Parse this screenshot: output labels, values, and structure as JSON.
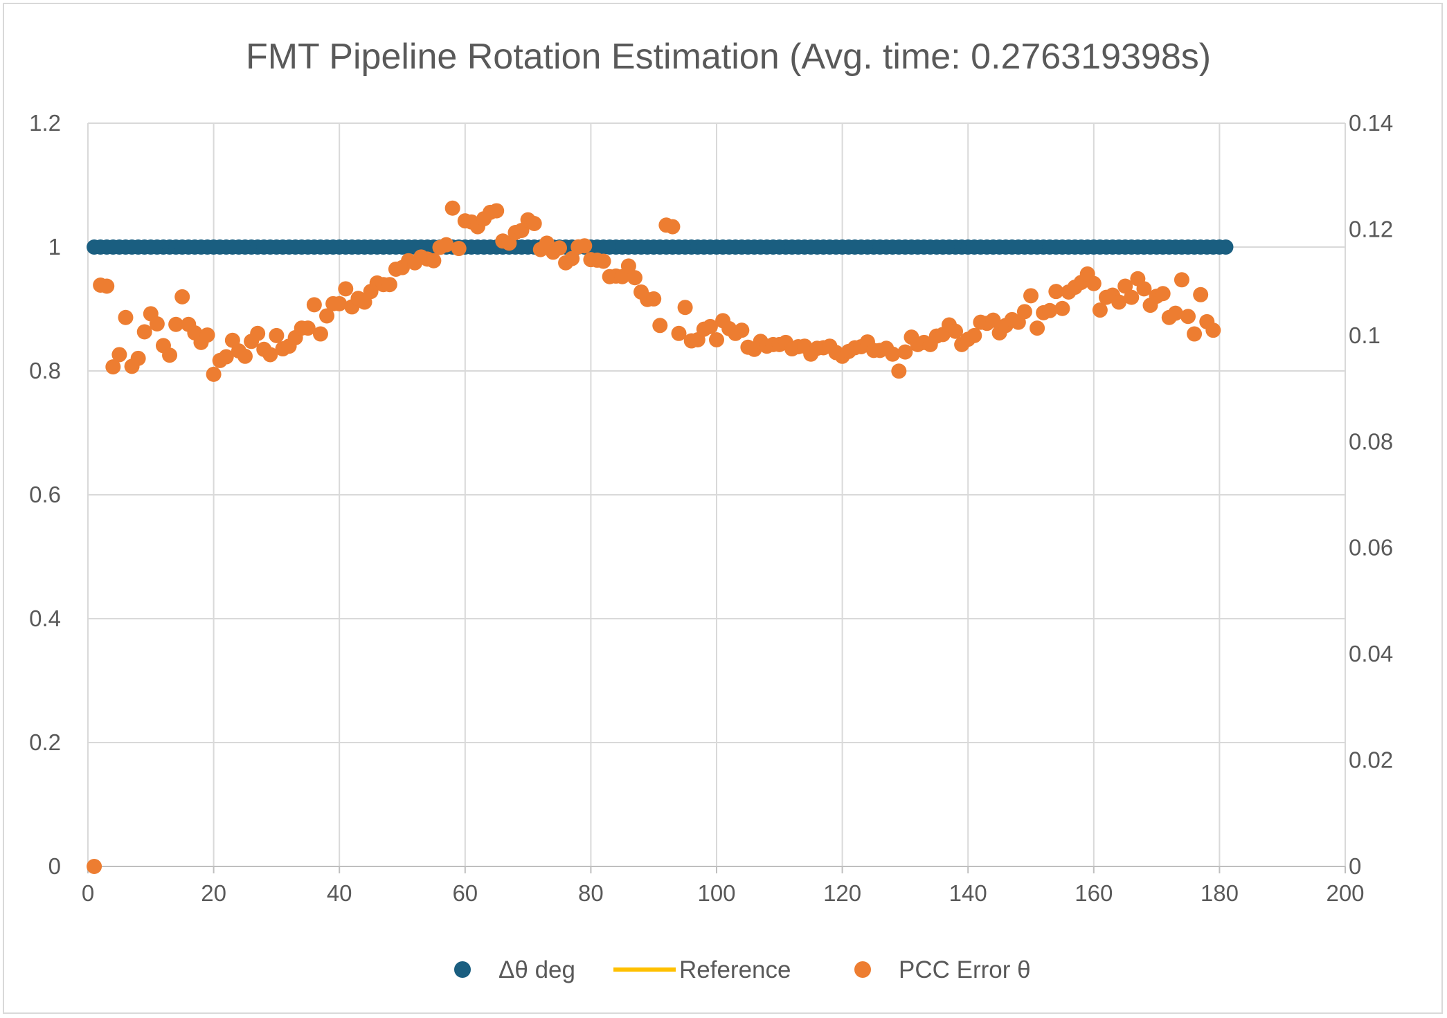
{
  "chart_data": {
    "type": "scatter",
    "title": "FMT Pipeline Rotation Estimation (Avg. time: 0.276319398s)",
    "xlabel": "",
    "ylabel": "",
    "y2label": "",
    "xlim": [
      0,
      200
    ],
    "ylim": [
      0,
      1.2
    ],
    "y2lim": [
      0,
      0.14
    ],
    "x_ticks": [
      "0",
      "20",
      "40",
      "60",
      "80",
      "100",
      "120",
      "140",
      "160",
      "180",
      "200"
    ],
    "y_ticks": [
      "0",
      "0.2",
      "0.4",
      "0.6",
      "0.8",
      "1",
      "1.2"
    ],
    "y2_ticks": [
      "0",
      "0.02",
      "0.04",
      "0.06",
      "0.08",
      "0.1",
      "0.12",
      "0.14"
    ],
    "grid": true,
    "legend_position": "bottom",
    "legend": [
      {
        "name": "Δθ deg",
        "marker": "dot",
        "color": "#1a5e80"
      },
      {
        "name": "Reference",
        "marker": "line",
        "color": "#ffc000"
      },
      {
        "name": "PCC Error θ",
        "marker": "dot",
        "color": "#ed7d31"
      }
    ],
    "series": [
      {
        "name": "Δθ deg",
        "axis": "left",
        "color": "#1a5e80",
        "x_start": 1,
        "x_end": 181,
        "x_step": 1,
        "y_constant": 1
      },
      {
        "name": "PCC Error θ",
        "axis": "right",
        "color": "#ed7d31",
        "x_start": 1,
        "x_step": 1,
        "values": [
          0,
          0.1095,
          0.1093,
          0.0941,
          0.0964,
          0.1034,
          0.0942,
          0.0957,
          0.1007,
          0.1041,
          0.1022,
          0.0981,
          0.0963,
          0.1021,
          0.1073,
          0.1021,
          0.1005,
          0.0987,
          0.1001,
          0.0927,
          0.0953,
          0.096,
          0.0991,
          0.0971,
          0.0961,
          0.0989,
          0.1004,
          0.0974,
          0.0964,
          0.1,
          0.0975,
          0.098,
          0.0996,
          0.1014,
          0.1014,
          0.1058,
          0.1003,
          0.1037,
          0.106,
          0.106,
          0.1088,
          0.1054,
          0.107,
          0.1063,
          0.1083,
          0.1099,
          0.1096,
          0.1096,
          0.1125,
          0.1128,
          0.1141,
          0.1137,
          0.1148,
          0.1144,
          0.1141,
          0.1166,
          0.1171,
          0.124,
          0.1164,
          0.1216,
          0.1214,
          0.1205,
          0.122,
          0.1232,
          0.1235,
          0.1178,
          0.1174,
          0.1194,
          0.1198,
          0.1218,
          0.1211,
          0.1162,
          0.1174,
          0.1157,
          0.1165,
          0.1137,
          0.1145,
          0.1167,
          0.1169,
          0.1143,
          0.1142,
          0.114,
          0.1111,
          0.1112,
          0.1111,
          0.1131,
          0.1109,
          0.1082,
          0.1068,
          0.1069,
          0.1019,
          0.1208,
          0.1205,
          0.1004,
          0.1053,
          0.099,
          0.0992,
          0.1012,
          0.1017,
          0.0992,
          0.1028,
          0.1013,
          0.1004,
          0.101,
          0.0978,
          0.0974,
          0.0989,
          0.098,
          0.0983,
          0.0983,
          0.0987,
          0.0975,
          0.0979,
          0.098,
          0.0965,
          0.0976,
          0.0977,
          0.098,
          0.0968,
          0.0961,
          0.097,
          0.0977,
          0.0979,
          0.0988,
          0.0972,
          0.0972,
          0.0976,
          0.0965,
          0.0933,
          0.0969,
          0.0997,
          0.0983,
          0.0987,
          0.0983,
          0.0999,
          0.1002,
          0.102,
          0.1008,
          0.0983,
          0.0993,
          0.1,
          0.1025,
          0.1023,
          0.1029,
          0.1005,
          0.1019,
          0.103,
          0.1025,
          0.1045,
          0.1075,
          0.1014,
          0.1043,
          0.1047,
          0.1083,
          0.1051,
          0.1082,
          0.1091,
          0.11,
          0.1116,
          0.1098,
          0.1048,
          0.1072,
          0.1076,
          0.1063,
          0.1093,
          0.1072,
          0.1107,
          0.1088,
          0.1057,
          0.1074,
          0.1079,
          0.1034,
          0.1042,
          0.1105,
          0.1036,
          0.1003,
          0.1077,
          0.1026,
          0.101
        ]
      }
    ]
  }
}
